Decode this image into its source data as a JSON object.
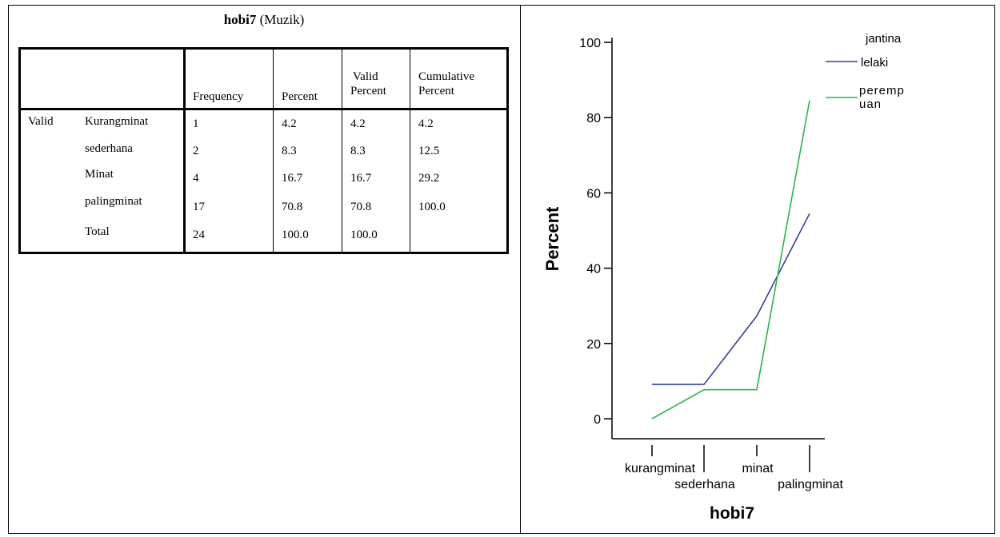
{
  "table": {
    "title_bold": "hobi7",
    "title_rest": " (Muzik)",
    "headers": [
      "Frequency",
      "Percent",
      "Valid",
      "Percent",
      "Cumulative",
      "Percent"
    ],
    "row_group": "Valid",
    "rows": [
      {
        "label": "Kurangminat",
        "frequency": "1",
        "percent": "4.2",
        "valid_percent": "4.2",
        "cumulative_percent": "4.2"
      },
      {
        "label": "sederhana",
        "frequency": "2",
        "percent": "8.3",
        "valid_percent": "8.3",
        "cumulative_percent": "12.5"
      },
      {
        "label": "Minat",
        "frequency": "4",
        "percent": "16.7",
        "valid_percent": "16.7",
        "cumulative_percent": "29.2"
      },
      {
        "label": "palingminat",
        "frequency": "17",
        "percent": "70.8",
        "valid_percent": "70.8",
        "cumulative_percent": "100.0"
      },
      {
        "label": "Total",
        "frequency": "24",
        "percent": "100.0",
        "valid_percent": "100.0",
        "cumulative_percent": ""
      }
    ]
  },
  "chart_data": {
    "type": "line",
    "xlabel": "hobi7",
    "ylabel": "Percent",
    "ylim": [
      0,
      100
    ],
    "yticks": [
      0,
      20,
      40,
      60,
      80,
      100
    ],
    "categories": [
      "kurangminat",
      "sederhana",
      "minat",
      "palingminat"
    ],
    "legend_title": "jantina",
    "legend_placement": "top-right",
    "series": [
      {
        "name": "lelaki",
        "color": "#33419a",
        "values": [
          9.1,
          9.1,
          27.3,
          54.5
        ]
      },
      {
        "name": "perempuan",
        "legend_lines": [
          "peremp",
          "uan"
        ],
        "color": "#2db34a",
        "values": [
          0,
          7.7,
          7.7,
          84.6
        ]
      }
    ]
  }
}
